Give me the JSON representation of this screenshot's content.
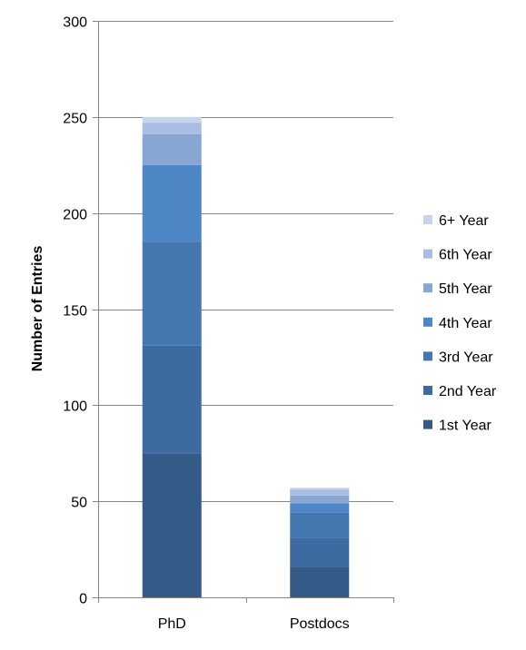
{
  "chart_data": {
    "type": "bar",
    "stacked": true,
    "categories": [
      "PhD",
      "Postdocs"
    ],
    "ylabel": "Number of Entries",
    "xlabel": "",
    "ylim": [
      0,
      300
    ],
    "yticks": [
      0,
      50,
      100,
      150,
      200,
      250,
      300
    ],
    "grid": true,
    "legend_position": "right",
    "series": [
      {
        "name": "1st Year",
        "values": [
          75,
          16
        ],
        "color": "#345a87"
      },
      {
        "name": "2nd Year",
        "values": [
          56,
          15
        ],
        "color": "#3d6aa0"
      },
      {
        "name": "3rd Year",
        "values": [
          54,
          13
        ],
        "color": "#4577b1"
      },
      {
        "name": "4th Year",
        "values": [
          40,
          5
        ],
        "color": "#4f86c6"
      },
      {
        "name": "5th Year",
        "values": [
          16,
          4
        ],
        "color": "#87a6d3"
      },
      {
        "name": "6th Year",
        "values": [
          6,
          3
        ],
        "color": "#a9bde2"
      },
      {
        "name": "6+ Year",
        "values": [
          3,
          1
        ],
        "color": "#c7d4ea"
      }
    ]
  }
}
